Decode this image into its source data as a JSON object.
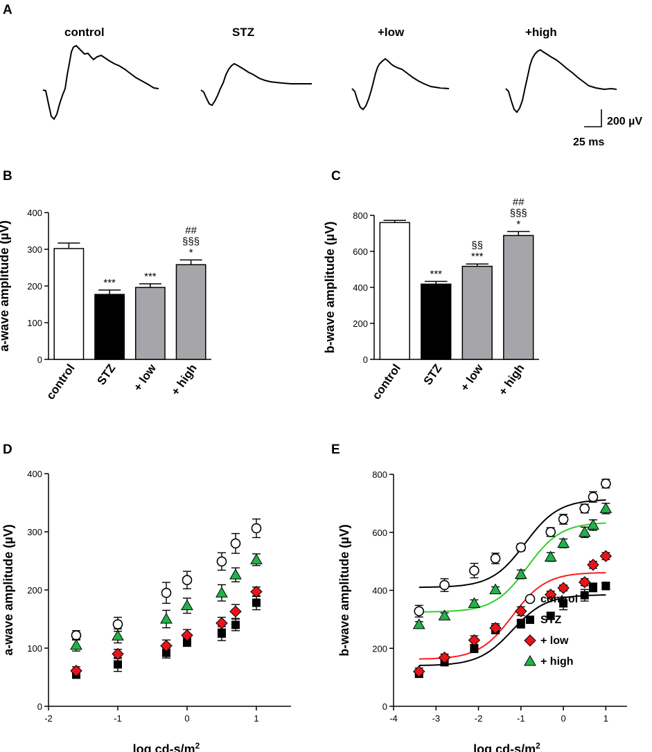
{
  "figure": {
    "panel_labels": [
      "A",
      "B",
      "C",
      "D",
      "E"
    ]
  },
  "panel_a": {
    "trace_labels": [
      "control",
      "STZ",
      "+low",
      "+high"
    ],
    "scale_bar": {
      "amplitude": "200 µV",
      "time": "25 ms"
    }
  },
  "colors": {
    "control_bar": "#ffffff",
    "stz": "#000000",
    "treated_bar": "#a6a6aa",
    "low": "#e8141a",
    "high": "#22b24b",
    "curve_high": "#2ad22a",
    "curve_low": "#ff1a1a",
    "ink": "#000000"
  },
  "chart_data": [
    {
      "panel": "B",
      "type": "bar",
      "categories": [
        "control",
        "STZ",
        "+ low",
        "+ high"
      ],
      "values": [
        302,
        177,
        196,
        258
      ],
      "errors": [
        15,
        12,
        10,
        13
      ],
      "significance": [
        [],
        [
          "***"
        ],
        [
          "***"
        ],
        [
          "*",
          "§§§",
          "##"
        ]
      ],
      "xlabel": "",
      "ylabel": "a-wave amplitude (µV)",
      "ylim": [
        0,
        400
      ],
      "yticks": [
        0,
        100,
        200,
        300,
        400
      ]
    },
    {
      "panel": "C",
      "type": "bar",
      "categories": [
        "control",
        "STZ",
        "+ low",
        "+ high"
      ],
      "values": [
        760,
        418,
        517,
        688
      ],
      "errors": [
        12,
        15,
        13,
        22
      ],
      "significance": [
        [],
        [
          "***"
        ],
        [
          "***",
          "§§"
        ],
        [
          "*",
          "§§§",
          "##"
        ]
      ],
      "xlabel": "",
      "ylabel": "b-wave amplitude (µV)",
      "ylim": [
        0,
        800
      ],
      "yticks": [
        0,
        200,
        400,
        600,
        800
      ]
    },
    {
      "panel": "D",
      "type": "scatter",
      "xlabel": "log cd-s/m²",
      "ylabel": "a-wave amplitude (µV)",
      "xlim": [
        -2,
        1.5
      ],
      "ylim": [
        0,
        400
      ],
      "xticks": [
        -2,
        -1,
        0,
        1
      ],
      "yticks": [
        0,
        100,
        200,
        300,
        400
      ],
      "x": [
        -1.6,
        -1.0,
        -0.3,
        0.0,
        0.5,
        0.7,
        1.0
      ],
      "series": [
        {
          "name": "control",
          "values": [
            122,
            141,
            195,
            217,
            249,
            280,
            306
          ],
          "errors": [
            8,
            12,
            18,
            15,
            15,
            17,
            16
          ]
        },
        {
          "name": "STZ",
          "values": [
            56,
            72,
            92,
            110,
            125,
            140,
            178
          ],
          "errors": [
            8,
            12,
            9,
            7,
            12,
            10,
            12
          ]
        },
        {
          "name": "+ low",
          "values": [
            61,
            90,
            104,
            122,
            143,
            163,
            197
          ],
          "errors": [
            7,
            8,
            10,
            10,
            10,
            12,
            8
          ]
        },
        {
          "name": "+ high",
          "values": [
            105,
            121,
            150,
            173,
            195,
            226,
            252
          ],
          "errors": [
            10,
            12,
            15,
            13,
            14,
            12,
            10
          ]
        }
      ]
    },
    {
      "panel": "E",
      "type": "scatter",
      "xlabel": "log cd-s/m²",
      "ylabel": "b-wave amplitude (µV)",
      "xlim": [
        -4,
        1.5
      ],
      "ylim": [
        0,
        800
      ],
      "xticks": [
        -4,
        -3,
        -2,
        -1,
        0,
        1
      ],
      "yticks": [
        0,
        200,
        400,
        600,
        800
      ],
      "x": [
        -3.4,
        -2.8,
        -2.1,
        -1.6,
        -1.0,
        -0.3,
        0.0,
        0.5,
        0.7,
        1.0
      ],
      "series": [
        {
          "name": "control",
          "values": [
            328,
            418,
            468,
            510,
            548,
            601,
            645,
            682,
            722,
            768
          ],
          "errors": [
            20,
            22,
            25,
            18,
            12,
            15,
            17,
            15,
            18,
            15
          ],
          "fit": {
            "bottom": 410,
            "top": 714,
            "ec50": -0.9,
            "hill": 1.1
          }
        },
        {
          "name": "STZ",
          "values": [
            112,
            152,
            198,
            265,
            285,
            312,
            355,
            383,
            410,
            415
          ],
          "errors": [
            12,
            12,
            12,
            15,
            15,
            12,
            22,
            20,
            15,
            13
          ],
          "fit": {
            "bottom": 140,
            "top": 385,
            "ec50": -1.2,
            "hill": 1.1
          }
        },
        {
          "name": "+ low",
          "values": [
            120,
            168,
            228,
            270,
            328,
            385,
            408,
            428,
            488,
            518
          ],
          "errors": [
            12,
            12,
            15,
            15,
            15,
            12,
            10,
            12,
            12,
            12
          ],
          "fit": {
            "bottom": 162,
            "top": 462,
            "ec50": -1.2,
            "hill": 1.1
          }
        },
        {
          "name": "+ high",
          "values": [
            282,
            312,
            355,
            402,
            455,
            515,
            562,
            600,
            625,
            682
          ],
          "errors": [
            10,
            10,
            12,
            10,
            15,
            15,
            15,
            18,
            18,
            18
          ],
          "fit": {
            "bottom": 325,
            "top": 635,
            "ec50": -0.85,
            "hill": 1.1
          }
        }
      ],
      "legend": [
        "control",
        "STZ",
        "+ low",
        "+ high"
      ]
    }
  ]
}
